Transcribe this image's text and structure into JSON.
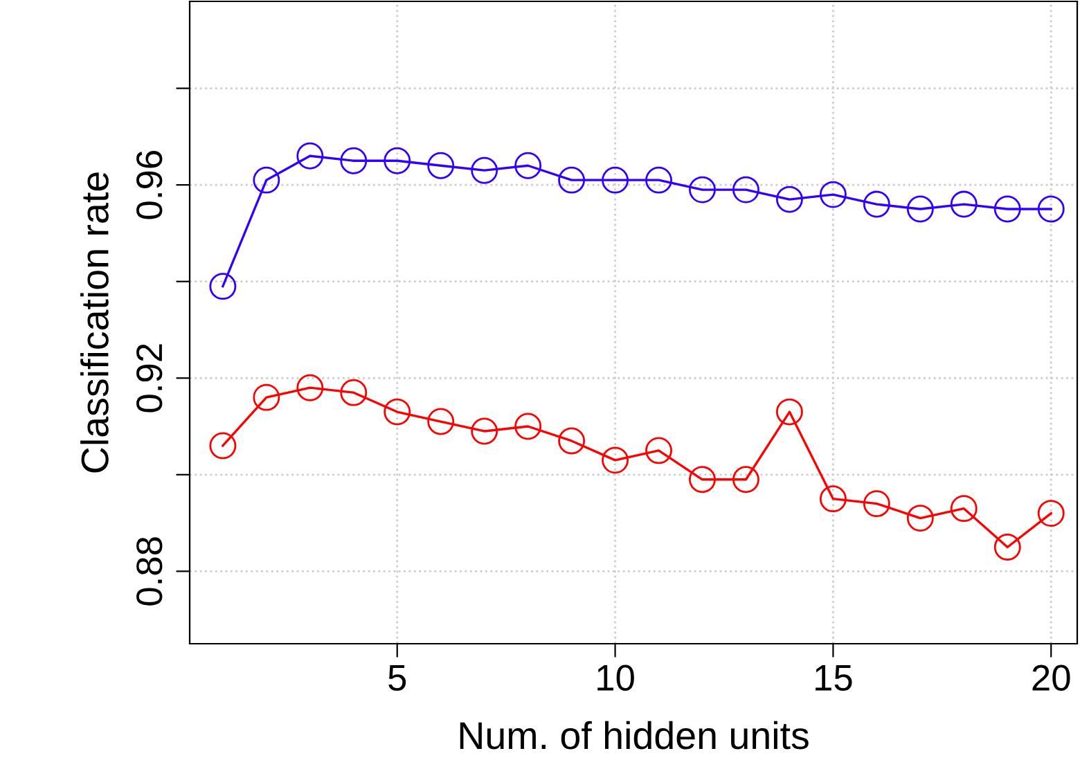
{
  "chart_data": {
    "type": "line",
    "xlabel": "Num. of hidden units",
    "ylabel": "Classification rate",
    "x": [
      1,
      2,
      3,
      4,
      5,
      6,
      7,
      8,
      9,
      10,
      11,
      12,
      13,
      14,
      15,
      16,
      17,
      18,
      19,
      20
    ],
    "series": [
      {
        "color": "#3300ff",
        "values": [
          0.939,
          0.961,
          0.966,
          0.965,
          0.965,
          0.964,
          0.963,
          0.964,
          0.961,
          0.961,
          0.961,
          0.959,
          0.959,
          0.957,
          0.958,
          0.956,
          0.955,
          0.956,
          0.955,
          0.955
        ]
      },
      {
        "color": "#ff0000",
        "values": [
          0.906,
          0.916,
          0.918,
          0.917,
          0.913,
          0.911,
          0.909,
          0.91,
          0.907,
          0.903,
          0.905,
          0.899,
          0.899,
          0.913,
          0.895,
          0.894,
          0.891,
          0.893,
          0.885,
          0.892
        ]
      }
    ],
    "xlim": [
      0.24,
      20.6
    ],
    "xticks": [
      5,
      10,
      15,
      20
    ],
    "ylim": [
      0.865,
      0.998
    ],
    "yticks": [
      0.88,
      {
        "value": 0.9,
        "label": null
      },
      0.92,
      {
        "value": 0.94,
        "label": null
      },
      0.96,
      {
        "value": 0.98,
        "label": null
      }
    ],
    "grid": true,
    "marker": "circle",
    "line_style": "solid",
    "legend": false
  }
}
